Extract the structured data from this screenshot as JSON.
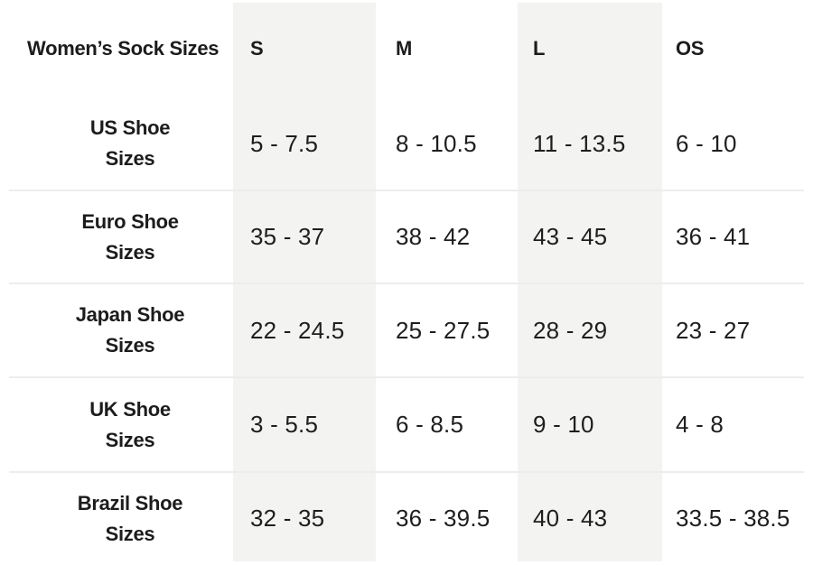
{
  "chart_data": {
    "type": "table",
    "title": "Women’s Sock Sizes",
    "columns": [
      "",
      "S",
      "M",
      "L",
      "OS"
    ],
    "rows": [
      [
        "US Shoe Sizes",
        "5 - 7.5",
        "8 - 10.5",
        "11 - 13.5",
        "6 - 10"
      ],
      [
        "Euro Shoe Sizes",
        "35 - 37",
        "38 - 42",
        "43 - 45",
        "36 - 41"
      ],
      [
        "Japan Shoe Sizes",
        "22 - 24.5",
        "25 - 27.5",
        "28 - 29",
        "23 - 27"
      ],
      [
        "UK Shoe Sizes",
        "3 - 5.5",
        "6 - 8.5",
        "9 - 10",
        "4 - 8"
      ],
      [
        "Brazil Shoe Sizes",
        "32 - 35",
        "36 - 39.5",
        "40 - 43",
        "33.5 - 38.5"
      ]
    ],
    "layout_hints": {
      "shaded_columns": [
        "S",
        "L"
      ],
      "grid": "horizontal dividers only, no vertical lines"
    }
  },
  "table": {
    "corner_label": "Women’s Sock Sizes",
    "headers": [
      "S",
      "M",
      "L",
      "OS"
    ],
    "rows": [
      {
        "label1": "US Shoe",
        "label2": "Sizes",
        "values": [
          "5 - 7.5",
          "8 - 10.5",
          "11 - 13.5",
          "6 - 10"
        ]
      },
      {
        "label1": "Euro Shoe",
        "label2": "Sizes",
        "values": [
          "35 - 37",
          "38 - 42",
          "43 - 45",
          "36 - 41"
        ]
      },
      {
        "label1": "Japan Shoe",
        "label2": "Sizes",
        "values": [
          "22 - 24.5",
          "25 - 27.5",
          "28 - 29",
          "23 - 27"
        ]
      },
      {
        "label1": "UK Shoe",
        "label2": "Sizes",
        "values": [
          "3 - 5.5",
          "6 - 8.5",
          "9 - 10",
          "4 - 8"
        ]
      },
      {
        "label1": "Brazil Shoe",
        "label2": "Sizes",
        "values": [
          "32 - 35",
          "36 - 39.5",
          "40 - 43",
          "33.5 - 38.5"
        ]
      }
    ]
  },
  "colors": {
    "background": "#ffffff",
    "shaded_column": "#f3f3f1",
    "divider": "#ededed",
    "text": "#1c1c1c"
  }
}
